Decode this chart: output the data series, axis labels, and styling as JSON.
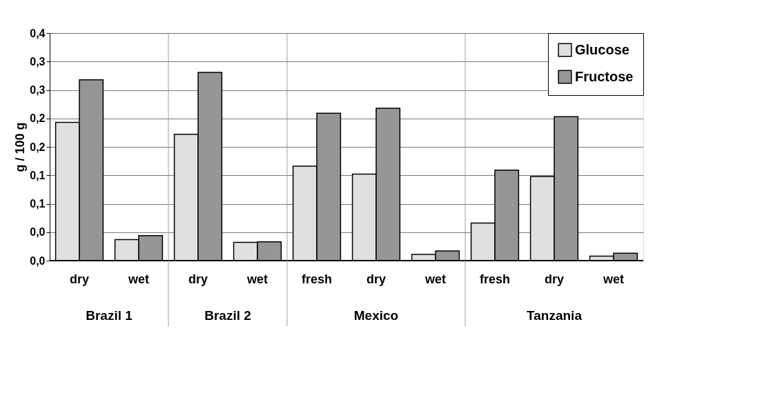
{
  "chart_data": {
    "type": "bar",
    "ylabel": "g / 100 g",
    "categories": [
      "dry",
      "wet",
      "dry",
      "wet",
      "fresh",
      "dry",
      "wet",
      "fresh",
      "dry",
      "wet"
    ],
    "series": [
      {
        "name": "Glucose",
        "color": "#e0e0e0",
        "values": [
          0.243,
          0.037,
          0.222,
          0.032,
          0.166,
          0.152,
          0.011,
          0.066,
          0.148,
          0.008
        ]
      },
      {
        "name": "Fructose",
        "color": "#969696",
        "values": [
          0.318,
          0.044,
          0.331,
          0.033,
          0.259,
          0.268,
          0.017,
          0.159,
          0.253,
          0.013
        ]
      }
    ],
    "ylim": [
      0,
      0.4
    ],
    "yticks": [
      {
        "value": 0,
        "label": "0,0"
      },
      {
        "value": 0.05,
        "label": "0,0"
      },
      {
        "value": 0.1,
        "label": "0,1"
      },
      {
        "value": 0.15,
        "label": "0,1"
      },
      {
        "value": 0.2,
        "label": "0,2"
      },
      {
        "value": 0.25,
        "label": "0,2"
      },
      {
        "value": 0.3,
        "label": "0,3"
      },
      {
        "value": 0.35,
        "label": "0,3"
      },
      {
        "value": 0.4,
        "label": "0,4"
      }
    ],
    "annotations": [
      "Brazil 1",
      "Brazil 2",
      "Mexico",
      "Tanzania"
    ],
    "grid": "y",
    "legend": "top right"
  }
}
